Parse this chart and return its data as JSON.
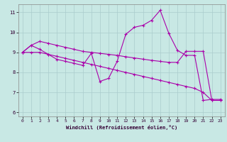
{
  "xlabel": "Windchill (Refroidissement éolien,°C)",
  "xlim": [
    -0.5,
    23.5
  ],
  "ylim": [
    5.8,
    11.4
  ],
  "yticks": [
    6,
    7,
    8,
    9,
    10,
    11
  ],
  "xticks": [
    0,
    1,
    2,
    3,
    4,
    5,
    6,
    7,
    8,
    9,
    10,
    11,
    12,
    13,
    14,
    15,
    16,
    17,
    18,
    19,
    20,
    21,
    22,
    23
  ],
  "bg_color": "#c8e8e4",
  "grid_color": "#aacccc",
  "line_color": "#aa00aa",
  "line1_x": [
    0,
    1,
    2,
    3,
    4,
    5,
    6,
    7,
    8,
    9,
    10,
    11,
    12,
    13,
    14,
    15,
    16,
    17,
    18,
    19,
    20,
    21,
    22,
    23
  ],
  "line1_y": [
    9.0,
    9.35,
    9.55,
    9.45,
    9.35,
    9.25,
    9.15,
    9.05,
    9.0,
    8.95,
    8.9,
    8.85,
    8.78,
    8.72,
    8.66,
    8.6,
    8.55,
    8.5,
    8.5,
    9.05,
    9.05,
    9.05,
    6.6,
    6.6
  ],
  "line2_x": [
    0,
    1,
    2,
    3,
    4,
    5,
    6,
    7,
    8,
    9,
    10,
    11,
    12,
    13,
    14,
    15,
    16,
    17,
    18,
    19,
    20,
    21,
    22,
    23
  ],
  "line2_y": [
    9.0,
    9.35,
    9.15,
    8.9,
    8.65,
    8.55,
    8.45,
    8.35,
    8.95,
    7.55,
    7.7,
    8.55,
    9.9,
    10.25,
    10.35,
    10.6,
    11.1,
    9.95,
    9.1,
    8.85,
    8.85,
    6.6,
    6.65,
    6.65
  ],
  "line3_x": [
    0,
    1,
    2,
    3,
    4,
    5,
    6,
    7,
    8,
    9,
    10,
    11,
    12,
    13,
    14,
    15,
    16,
    17,
    18,
    19,
    20,
    21,
    22,
    23
  ],
  "line3_y": [
    9.0,
    9.0,
    9.0,
    8.9,
    8.8,
    8.7,
    8.6,
    8.5,
    8.4,
    8.3,
    8.2,
    8.1,
    8.0,
    7.9,
    7.8,
    7.7,
    7.6,
    7.5,
    7.4,
    7.3,
    7.2,
    7.0,
    6.6,
    6.6
  ],
  "marker": "+",
  "marker_size": 3,
  "linewidth": 0.8
}
